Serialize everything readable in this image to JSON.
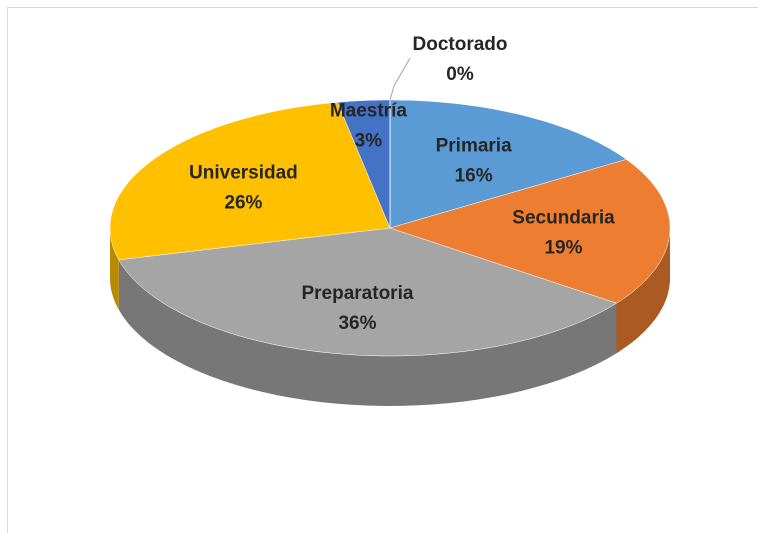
{
  "chart_data": {
    "type": "pie",
    "categories": [
      "Primaria",
      "Secundaria",
      "Preparatoria",
      "Universidad",
      "Maestría",
      "Doctorado"
    ],
    "values": [
      16,
      19,
      36,
      26,
      3,
      0
    ],
    "value_labels": [
      "16%",
      "19%",
      "36%",
      "26%",
      "3%",
      "0%"
    ],
    "colors": [
      "#5b9bd5",
      "#ed7d31",
      "#a5a5a5",
      "#ffc000",
      "#4472c4",
      "#70ad47"
    ]
  }
}
